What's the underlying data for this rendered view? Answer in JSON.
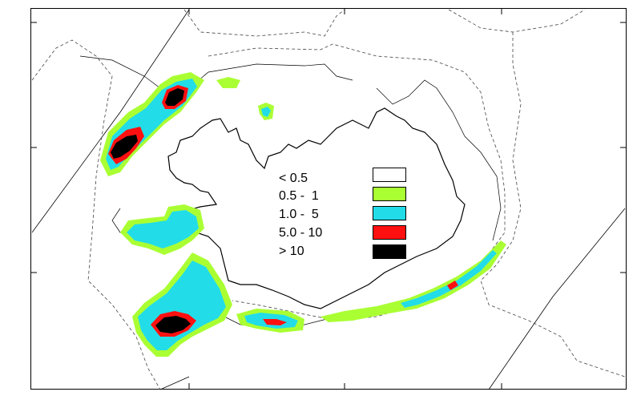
{
  "legend": {
    "items": [
      {
        "label": "< 0.5",
        "color": "#ffffff"
      },
      {
        "label": "0.5 -  1",
        "color": "#aaff33"
      },
      {
        "label": "1.0 -  5",
        "color": "#22dde8"
      },
      {
        "label": "5.0 - 10",
        "color": "#ff1010"
      },
      {
        "label": "> 10",
        "color": "#000000"
      }
    ]
  },
  "map": {
    "land_outline_color": "#000000",
    "contour_color": "#000000",
    "depth_line_style": "dashed"
  }
}
